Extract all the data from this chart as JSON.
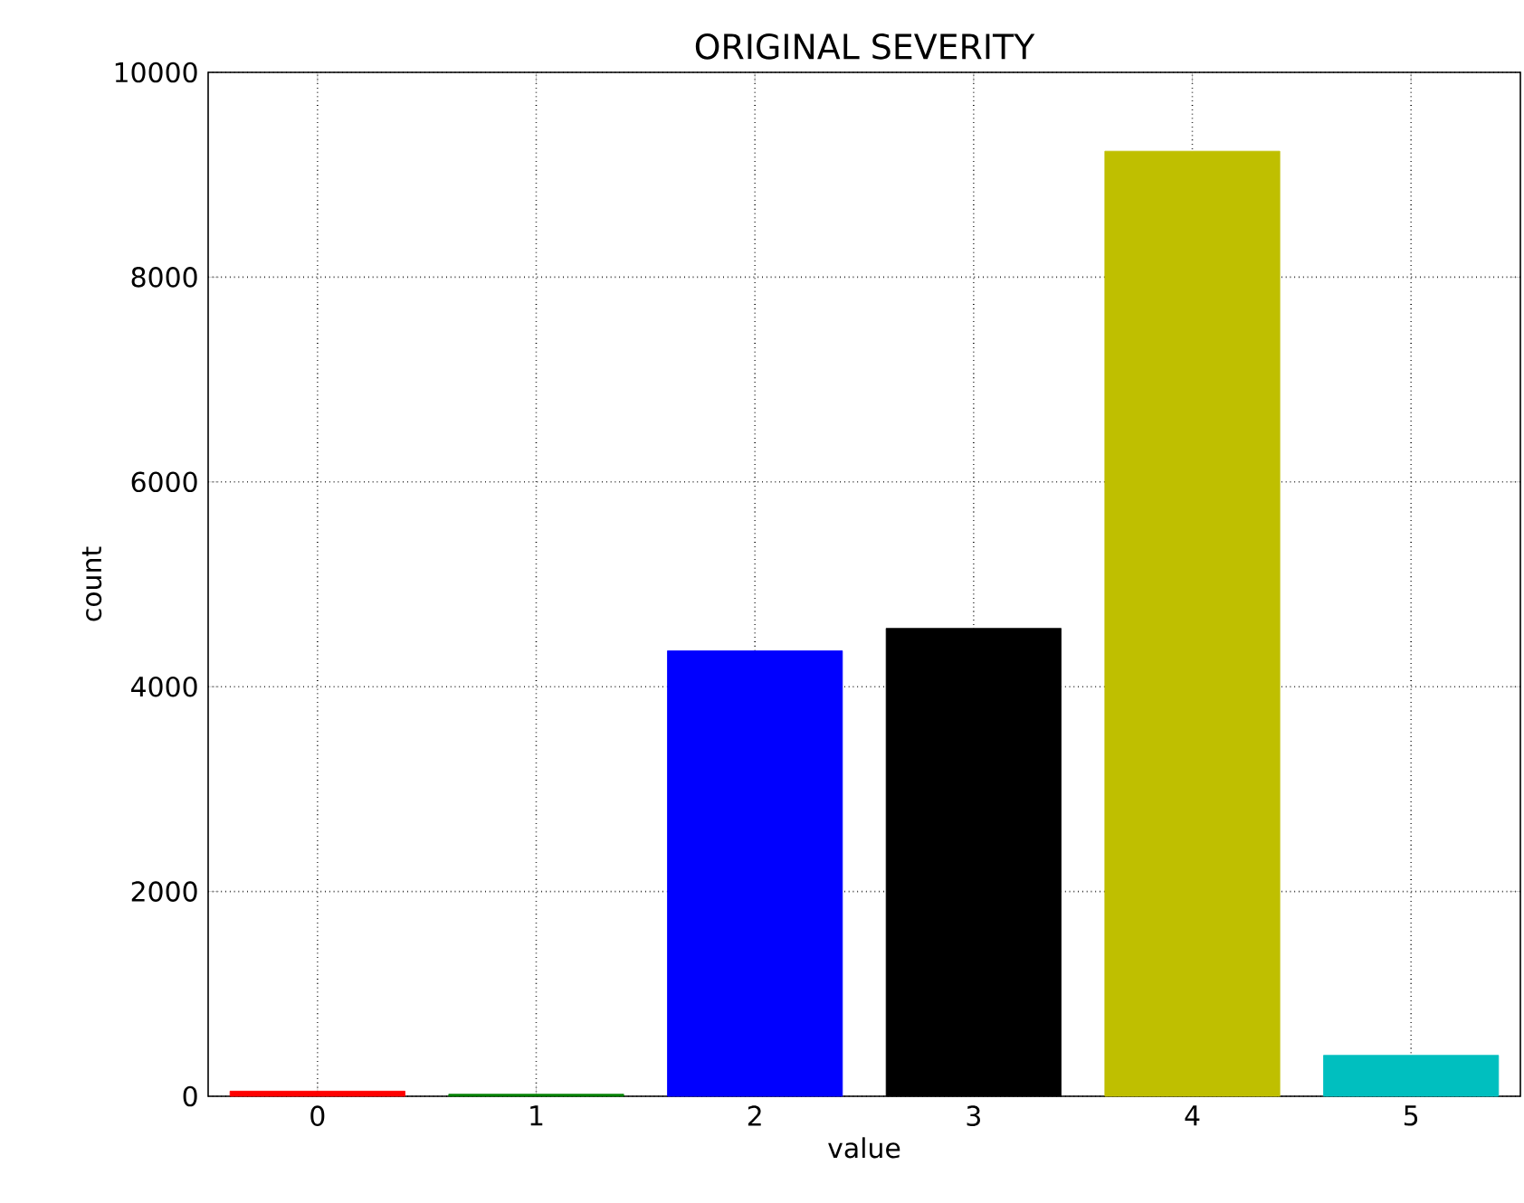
{
  "chart_data": {
    "type": "bar",
    "title": "ORIGINAL SEVERITY",
    "xlabel": "value",
    "ylabel": "count",
    "categories": [
      "0",
      "1",
      "2",
      "3",
      "4",
      "5"
    ],
    "values": [
      50,
      20,
      4350,
      4570,
      9230,
      400
    ],
    "colors": [
      "#ff0000",
      "#008000",
      "#0000ff",
      "#000000",
      "#bfbf00",
      "#00bfbf"
    ],
    "ylim": [
      0,
      10000
    ],
    "yticks": [
      0,
      2000,
      4000,
      6000,
      8000,
      10000
    ],
    "grid": true
  }
}
